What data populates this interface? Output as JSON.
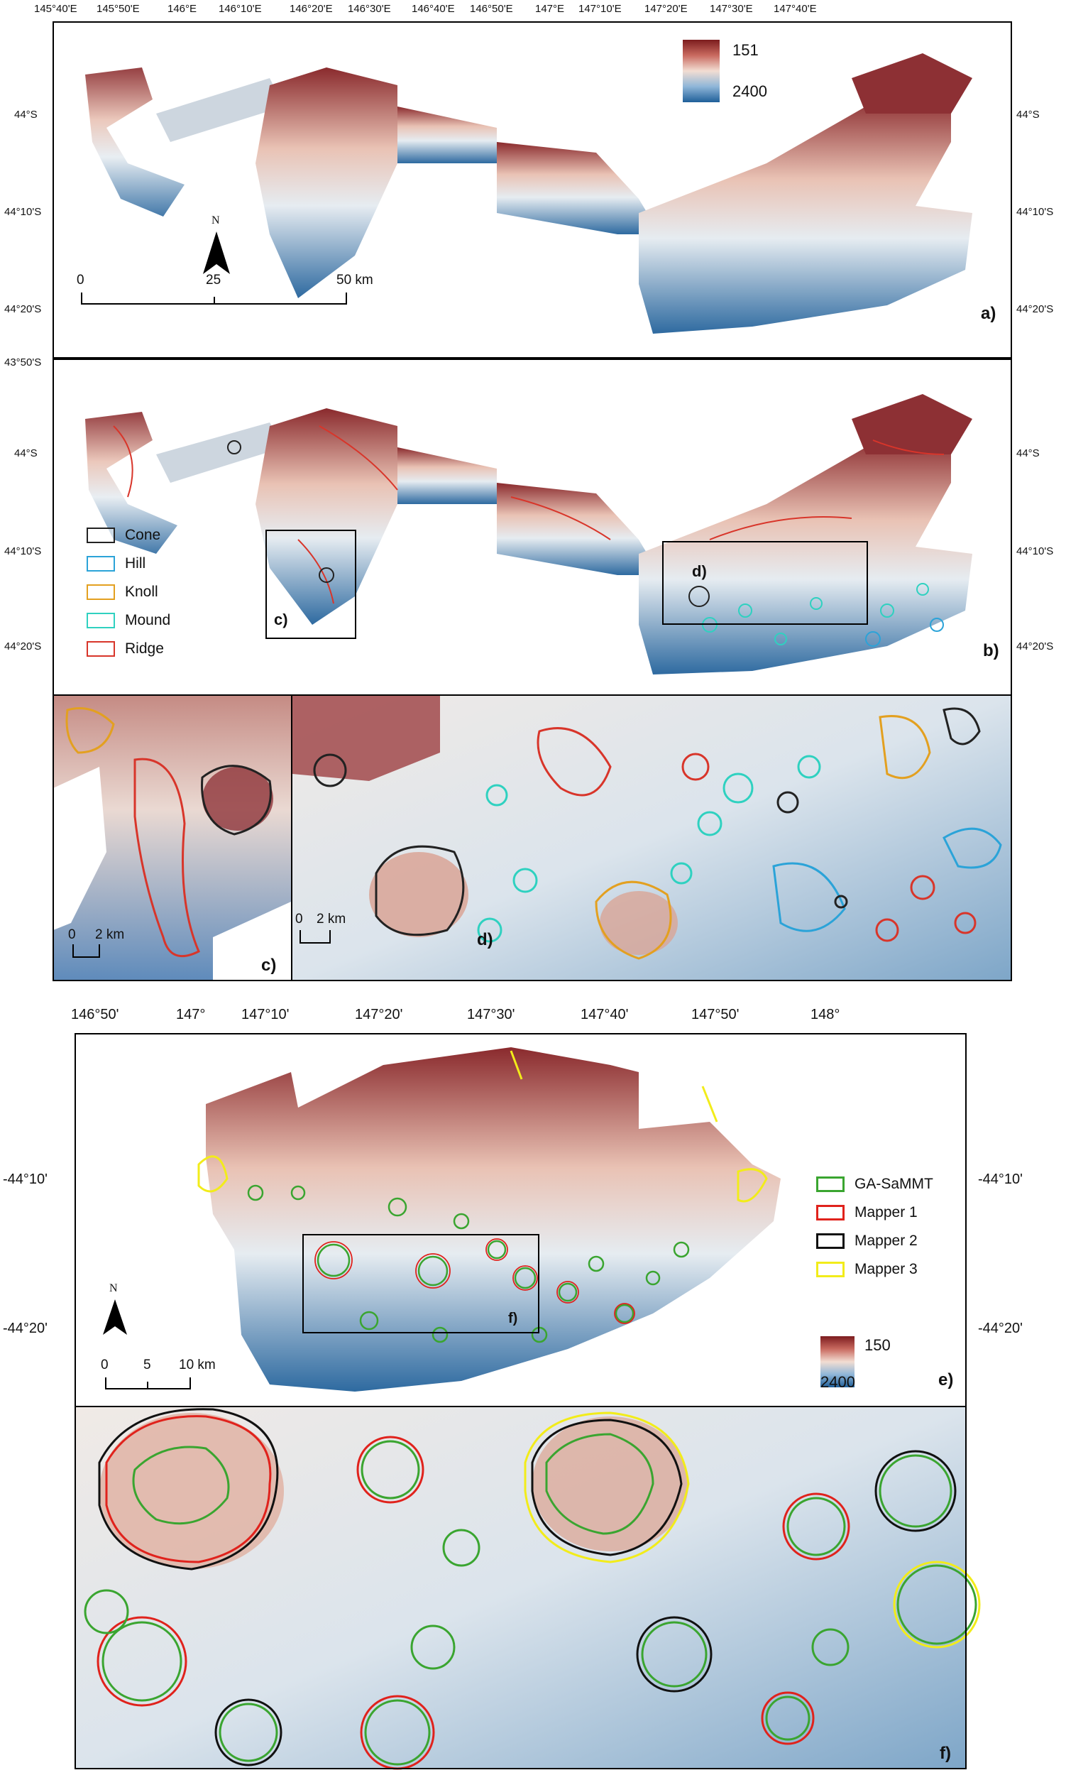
{
  "panel_a": {
    "label": "a)",
    "top_ticks": [
      "145°40'E",
      "145°50'E",
      "146°E",
      "146°10'E",
      "146°20'E",
      "146°30'E",
      "146°40'E",
      "146°50'E",
      "147°E",
      "147°10'E",
      "147°20'E",
      "147°30'E",
      "147°40'E"
    ],
    "left_ticks": [
      "44°S",
      "44°10'S",
      "44°20'S",
      "43°50'S"
    ],
    "right_ticks": [
      "44°S",
      "44°10'S",
      "44°20'S"
    ],
    "colorbar": {
      "max": "151",
      "min": "2400",
      "colors": [
        "#7c1c1e",
        "#f2ddd2",
        "#1f5f99"
      ]
    },
    "scalebar": [
      "0",
      "25",
      "50 km"
    ],
    "north": "N"
  },
  "panel_b": {
    "label": "b)",
    "left_ticks": [
      "44°S",
      "44°10'S",
      "44°20'S"
    ],
    "right_ticks": [
      "44°S",
      "44°10'S",
      "44°20'S"
    ],
    "inset_c": "c)",
    "inset_d": "d)",
    "legend": [
      {
        "label": "Cone",
        "color": "#222222"
      },
      {
        "label": "Hill",
        "color": "#2ba3d8"
      },
      {
        "label": "Knoll",
        "color": "#e3a020"
      },
      {
        "label": "Mound",
        "color": "#2fd1c0"
      },
      {
        "label": "Ridge",
        "color": "#d8352a"
      }
    ]
  },
  "panel_c": {
    "label": "c)",
    "scale": [
      "0",
      "2 km"
    ]
  },
  "panel_d": {
    "label": "d)",
    "scale": [
      "0",
      "2 km"
    ]
  },
  "panel_e": {
    "label": "e)",
    "top_ticks": [
      "146°50'",
      "147°",
      "147°10'",
      "147°20'",
      "147°30'",
      "147°40'",
      "147°50'",
      "148°"
    ],
    "left_ticks": [
      "-44°10'",
      "-44°20'"
    ],
    "right_ticks": [
      "-44°10'",
      "-44°20'"
    ],
    "legend": [
      {
        "label": "GA-SaMMT",
        "color": "#3aa530"
      },
      {
        "label": "Mapper 1",
        "color": "#e0221c"
      },
      {
        "label": "Mapper 2",
        "color": "#111111"
      },
      {
        "label": "Mapper 3",
        "color": "#f2ec1a"
      }
    ],
    "colorbar": {
      "max": "150",
      "min": "2400"
    },
    "scalebar": [
      "0",
      "5",
      "10 km"
    ],
    "north": "N",
    "inset_f": "f)"
  },
  "panel_f": {
    "label": "f)"
  }
}
